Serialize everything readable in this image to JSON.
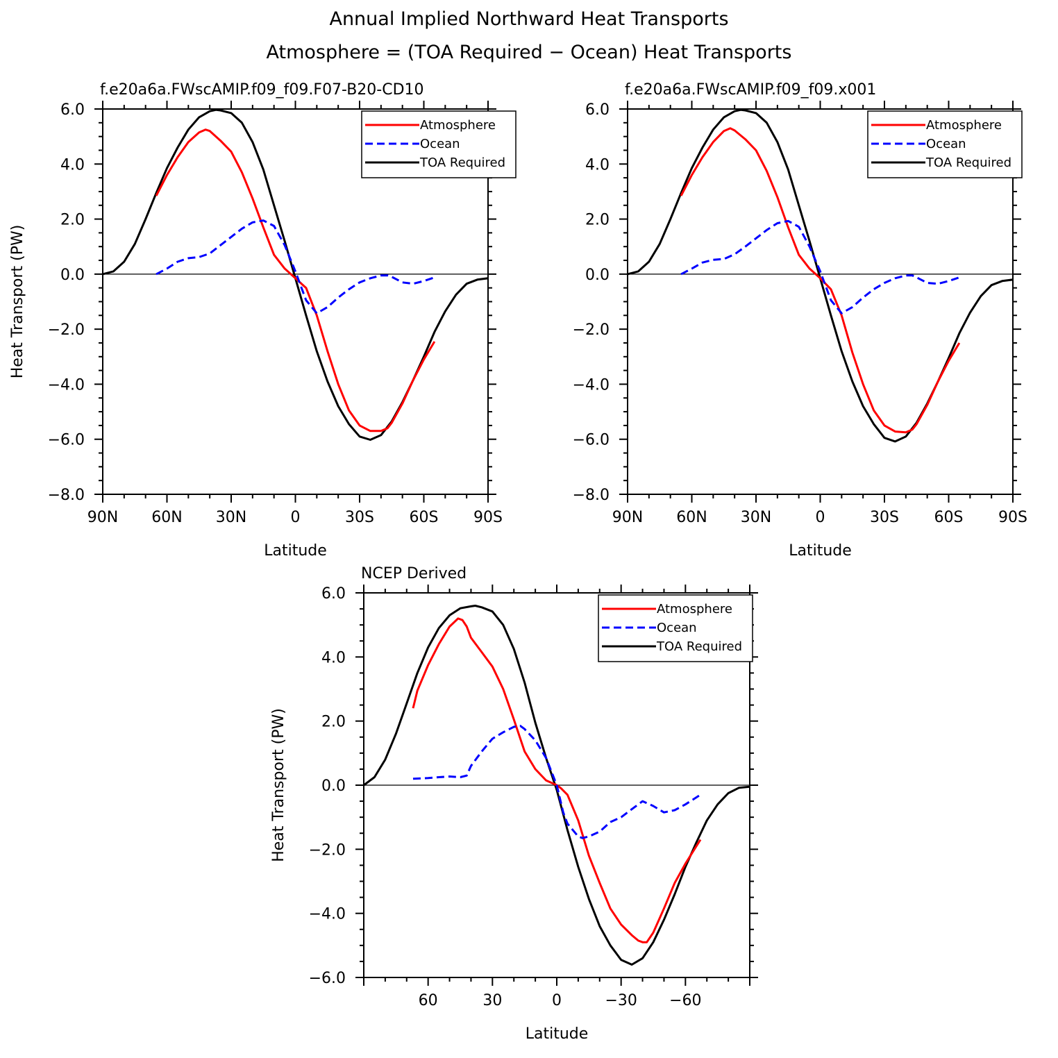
{
  "figure": {
    "title_line1": "Annual Implied Northward Heat Transports",
    "title_line2": "Atmosphere = (TOA Required − Ocean) Heat Transports"
  },
  "colors": {
    "atmosphere": "#ff0000",
    "ocean": "#0000ff",
    "toa": "#000000"
  },
  "chart_data": [
    {
      "type": "line",
      "title": "f.e20a6a.FWscAMIP.f09_f09.F07-B20-CD10",
      "xlabel": "Latitude",
      "ylabel": "Heat Transport (PW)",
      "xlim": [
        90,
        -90
      ],
      "ylim": [
        -8,
        6
      ],
      "xticks": [
        90,
        60,
        30,
        0,
        -30,
        -60,
        -90
      ],
      "xtick_labels": [
        "90N",
        "60N",
        "30N",
        "0",
        "30S",
        "60S",
        "90S"
      ],
      "yticks": [
        6,
        4,
        2,
        0,
        -2,
        -4,
        -6,
        -8
      ],
      "ytick_labels": [
        "6.0",
        "4.0",
        "2.0",
        "0.0",
        "−2.0",
        "−4.0",
        "−6.0",
        "−8.0"
      ],
      "legend": [
        "Atmosphere",
        "Ocean",
        "TOA Required"
      ],
      "legend_position": "top-right",
      "series": [
        {
          "name": "TOA Required",
          "style": "solid",
          "x": [
            90,
            85,
            80,
            75,
            70,
            65,
            60,
            55,
            50,
            45,
            40,
            37,
            35,
            30,
            25,
            20,
            15,
            10,
            5,
            0,
            -5,
            -10,
            -15,
            -20,
            -25,
            -30,
            -35,
            -40,
            -45,
            -50,
            -55,
            -60,
            -65,
            -70,
            -75,
            -80,
            -85,
            -90
          ],
          "values": [
            0,
            0.1,
            0.45,
            1.1,
            2.0,
            2.95,
            3.85,
            4.6,
            5.25,
            5.7,
            5.92,
            5.97,
            5.95,
            5.85,
            5.5,
            4.8,
            3.8,
            2.5,
            1.2,
            -0.15,
            -1.5,
            -2.8,
            -3.9,
            -4.8,
            -5.45,
            -5.9,
            -6.02,
            -5.85,
            -5.35,
            -4.65,
            -3.85,
            -3.0,
            -2.1,
            -1.35,
            -0.75,
            -0.35,
            -0.2,
            -0.15
          ]
        },
        {
          "name": "Atmosphere",
          "style": "solid",
          "x": [
            65,
            60,
            55,
            50,
            45,
            42,
            40,
            35,
            30,
            25,
            20,
            15,
            10,
            5,
            0,
            -5,
            -10,
            -15,
            -20,
            -25,
            -30,
            -35,
            -40,
            -43,
            -45,
            -50,
            -55,
            -60,
            -65
          ],
          "values": [
            2.85,
            3.6,
            4.25,
            4.8,
            5.15,
            5.25,
            5.2,
            4.85,
            4.45,
            3.7,
            2.75,
            1.7,
            0.7,
            0.2,
            -0.15,
            -0.5,
            -1.5,
            -2.8,
            -4.0,
            -4.95,
            -5.5,
            -5.7,
            -5.7,
            -5.6,
            -5.4,
            -4.7,
            -3.85,
            -3.1,
            -2.45
          ]
        },
        {
          "name": "Ocean",
          "style": "dashed",
          "x": [
            65,
            60,
            55,
            50,
            45,
            40,
            35,
            30,
            25,
            20,
            15,
            10,
            5,
            0,
            -5,
            -10,
            -15,
            -20,
            -25,
            -30,
            -35,
            -40,
            -43,
            -45,
            -50,
            -55,
            -60,
            -65
          ],
          "values": [
            0,
            0.2,
            0.45,
            0.58,
            0.62,
            0.75,
            1.05,
            1.35,
            1.65,
            1.88,
            1.95,
            1.75,
            1.05,
            0.1,
            -0.95,
            -1.42,
            -1.2,
            -0.85,
            -0.55,
            -0.3,
            -0.15,
            -0.05,
            -0.05,
            -0.1,
            -0.3,
            -0.35,
            -0.25,
            -0.12
          ]
        }
      ]
    },
    {
      "type": "line",
      "title": "f.e20a6a.FWscAMIP.f09_f09.x001",
      "xlabel": "Latitude",
      "ylabel": "",
      "xlim": [
        90,
        -90
      ],
      "ylim": [
        -8,
        6
      ],
      "xticks": [
        90,
        60,
        30,
        0,
        -30,
        -60,
        -90
      ],
      "xtick_labels": [
        "90N",
        "60N",
        "30N",
        "0",
        "30S",
        "60S",
        "90S"
      ],
      "yticks": [
        6,
        4,
        2,
        0,
        -2,
        -4,
        -6,
        -8
      ],
      "ytick_labels": [
        "6.0",
        "4.0",
        "2.0",
        "0.0",
        "−2.0",
        "−4.0",
        "−6.0",
        "−8.0"
      ],
      "legend": [
        "Atmosphere",
        "Ocean",
        "TOA Required"
      ],
      "legend_position": "top-right",
      "series": [
        {
          "name": "TOA Required",
          "style": "solid",
          "x": [
            90,
            85,
            80,
            75,
            70,
            65,
            60,
            55,
            50,
            45,
            40,
            37,
            35,
            30,
            25,
            20,
            15,
            10,
            5,
            0,
            -5,
            -10,
            -15,
            -20,
            -25,
            -30,
            -35,
            -40,
            -45,
            -50,
            -55,
            -60,
            -65,
            -70,
            -75,
            -80,
            -85,
            -90
          ],
          "values": [
            0,
            0.1,
            0.45,
            1.1,
            2.0,
            2.95,
            3.85,
            4.6,
            5.25,
            5.7,
            5.92,
            5.97,
            5.95,
            5.85,
            5.5,
            4.8,
            3.8,
            2.5,
            1.2,
            -0.15,
            -1.5,
            -2.8,
            -3.9,
            -4.8,
            -5.45,
            -5.95,
            -6.08,
            -5.9,
            -5.4,
            -4.7,
            -3.9,
            -3.05,
            -2.15,
            -1.4,
            -0.8,
            -0.4,
            -0.25,
            -0.2
          ]
        },
        {
          "name": "Atmosphere",
          "style": "solid",
          "x": [
            65,
            60,
            55,
            50,
            45,
            42,
            40,
            35,
            30,
            25,
            20,
            15,
            10,
            5,
            0,
            -5,
            -10,
            -15,
            -20,
            -25,
            -30,
            -35,
            -40,
            -43,
            -45,
            -50,
            -55,
            -60,
            -65
          ],
          "values": [
            2.85,
            3.6,
            4.25,
            4.8,
            5.2,
            5.3,
            5.22,
            4.9,
            4.5,
            3.75,
            2.8,
            1.7,
            0.7,
            0.2,
            -0.15,
            -0.55,
            -1.5,
            -2.85,
            -4.0,
            -4.95,
            -5.5,
            -5.72,
            -5.75,
            -5.65,
            -5.45,
            -4.75,
            -3.9,
            -3.15,
            -2.5
          ]
        },
        {
          "name": "Ocean",
          "style": "dashed",
          "x": [
            65,
            60,
            55,
            50,
            45,
            40,
            35,
            30,
            25,
            20,
            15,
            10,
            5,
            0,
            -5,
            -10,
            -15,
            -20,
            -25,
            -30,
            -35,
            -40,
            -43,
            -45,
            -50,
            -55,
            -60,
            -65
          ],
          "values": [
            0,
            0.2,
            0.42,
            0.52,
            0.55,
            0.72,
            1.0,
            1.3,
            1.6,
            1.85,
            1.93,
            1.72,
            1.0,
            0.1,
            -0.95,
            -1.42,
            -1.2,
            -0.85,
            -0.55,
            -0.32,
            -0.15,
            -0.05,
            -0.05,
            -0.12,
            -0.32,
            -0.35,
            -0.25,
            -0.12
          ]
        }
      ]
    },
    {
      "type": "line",
      "title": "NCEP Derived",
      "xlabel": "Latitude",
      "ylabel": "Heat Transport (PW)",
      "xlim": [
        90,
        -90
      ],
      "ylim": [
        -6,
        6
      ],
      "xticks": [
        60,
        30,
        0,
        -30,
        -60
      ],
      "xtick_labels": [
        "60",
        "30",
        "0",
        "−30",
        "−60"
      ],
      "yticks": [
        6,
        4,
        2,
        0,
        -2,
        -4,
        -6
      ],
      "ytick_labels": [
        "6.0",
        "4.0",
        "2.0",
        "0.0",
        "−2.0",
        "−4.0",
        "−6.0"
      ],
      "legend": [
        "Atmosphere",
        "Ocean",
        "TOA Required"
      ],
      "legend_position": "top-right",
      "series": [
        {
          "name": "TOA Required",
          "style": "solid",
          "x": [
            90,
            85,
            80,
            75,
            70,
            65,
            60,
            55,
            50,
            45,
            40,
            38,
            35,
            30,
            25,
            20,
            15,
            10,
            5,
            0,
            -5,
            -10,
            -15,
            -20,
            -25,
            -30,
            -35,
            -40,
            -45,
            -50,
            -55,
            -60,
            -65,
            -70,
            -75,
            -80,
            -85,
            -90
          ],
          "values": [
            0,
            0.25,
            0.8,
            1.6,
            2.55,
            3.5,
            4.3,
            4.9,
            5.3,
            5.52,
            5.58,
            5.6,
            5.55,
            5.42,
            5.0,
            4.25,
            3.2,
            1.95,
            0.85,
            -0.15,
            -1.4,
            -2.55,
            -3.55,
            -4.4,
            -5.0,
            -5.45,
            -5.6,
            -5.4,
            -4.9,
            -4.2,
            -3.4,
            -2.55,
            -1.8,
            -1.1,
            -0.6,
            -0.25,
            -0.08,
            -0.05
          ]
        },
        {
          "name": "Atmosphere",
          "style": "solid",
          "x": [
            67,
            65,
            60,
            55,
            50,
            46,
            44,
            42,
            40,
            35,
            30,
            25,
            20,
            15,
            10,
            5,
            0,
            -2,
            -5,
            -10,
            -15,
            -20,
            -25,
            -30,
            -35,
            -38,
            -40,
            -42,
            -45,
            -50,
            -55,
            -60,
            -67
          ],
          "values": [
            2.4,
            2.95,
            3.75,
            4.4,
            4.95,
            5.2,
            5.15,
            4.95,
            4.6,
            4.15,
            3.7,
            3.0,
            2.05,
            1.05,
            0.5,
            0.15,
            0.0,
            -0.1,
            -0.3,
            -1.1,
            -2.2,
            -3.05,
            -3.85,
            -4.35,
            -4.68,
            -4.85,
            -4.9,
            -4.9,
            -4.6,
            -3.85,
            -3.05,
            -2.45,
            -1.7
          ]
        },
        {
          "name": "Ocean",
          "style": "dashed",
          "x": [
            67,
            60,
            55,
            50,
            45,
            42,
            40,
            35,
            30,
            25,
            20,
            17,
            15,
            10,
            5,
            0,
            -3,
            -5,
            -10,
            -12,
            -15,
            -20,
            -25,
            -30,
            -35,
            -40,
            -45,
            -50,
            -55,
            -60,
            -67
          ],
          "values": [
            0.2,
            0.22,
            0.25,
            0.27,
            0.25,
            0.3,
            0.6,
            1.05,
            1.45,
            1.65,
            1.82,
            1.85,
            1.75,
            1.4,
            0.85,
            0.0,
            -0.85,
            -1.2,
            -1.6,
            -1.65,
            -1.6,
            -1.45,
            -1.15,
            -1.0,
            -0.75,
            -0.5,
            -0.65,
            -0.85,
            -0.78,
            -0.6,
            -0.3
          ]
        }
      ]
    }
  ]
}
